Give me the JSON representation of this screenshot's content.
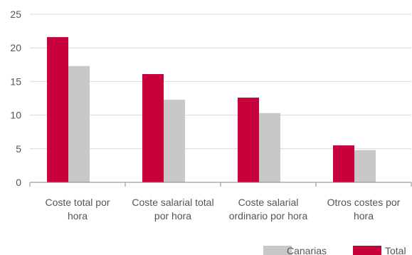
{
  "chart_data": {
    "type": "bar",
    "categories": [
      [
        "Coste total por",
        "hora"
      ],
      [
        "Coste salarial total",
        "por hora"
      ],
      [
        "Coste salarial",
        "ordinario por hora"
      ],
      [
        "Otros costes por",
        "hora"
      ]
    ],
    "series": [
      {
        "name": "Total",
        "color": "#C8003C",
        "values": [
          21.6,
          16.1,
          12.6,
          5.5
        ]
      },
      {
        "name": "Canarias",
        "color": "#C8C8C8",
        "values": [
          17.3,
          12.3,
          10.3,
          4.8
        ]
      }
    ],
    "legend_order": [
      "Canarias",
      "Total"
    ],
    "ylim": [
      0,
      25
    ],
    "yticks": [
      0,
      5,
      10,
      15,
      20,
      25
    ],
    "grid": true,
    "legend_position": "bottom-right",
    "title": "",
    "xlabel": "",
    "ylabel": ""
  }
}
